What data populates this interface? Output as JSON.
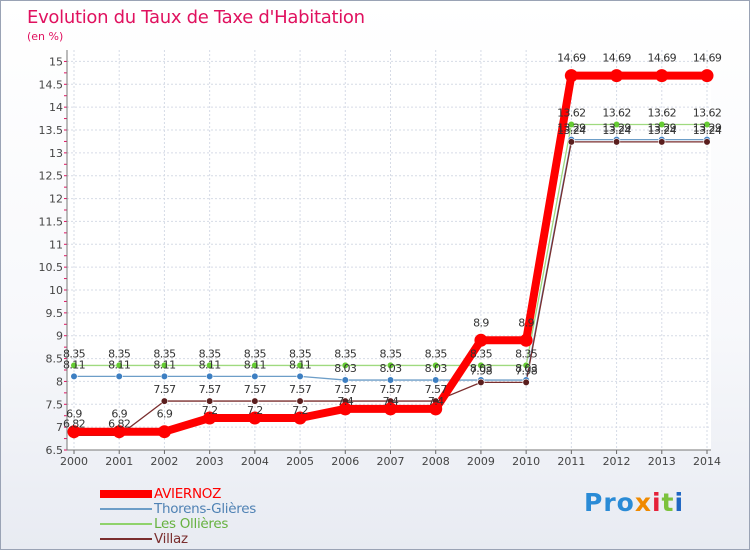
{
  "chart_data": {
    "type": "line",
    "title": "Evolution du Taux de Taxe d'Habitation",
    "ylabel": "(en %)",
    "xlabel": "",
    "categories": [
      "2000",
      "2001",
      "2002",
      "2003",
      "2004",
      "2005",
      "2006",
      "2007",
      "2008",
      "2009",
      "2010",
      "2011",
      "2012",
      "2013",
      "2014"
    ],
    "yticks": [
      "6.5",
      "7",
      "7.5",
      "8",
      "8.5",
      "9",
      "9.5",
      "10",
      "10.5",
      "11",
      "11.5",
      "12",
      "12.5",
      "13",
      "13.5",
      "14",
      "14.5",
      "15"
    ],
    "ylim": [
      6.5,
      15
    ],
    "grid": true,
    "legend_position": "bottom-left",
    "series": [
      {
        "name": "AVIERNOZ",
        "color": "#ff0000",
        "values": [
          6.9,
          6.9,
          6.9,
          7.2,
          7.2,
          7.2,
          7.4,
          7.4,
          7.4,
          8.9,
          8.9,
          14.69,
          14.69,
          14.69,
          14.69
        ],
        "labels": [
          "6.9",
          "6.9",
          "6.9",
          "",
          "",
          "",
          "",
          "",
          "",
          "8.9",
          "8.9",
          "14.69",
          "14.69",
          "14.69",
          "14.69"
        ]
      },
      {
        "name": "Thorens-Glières",
        "color": "#6d9ec8",
        "values": [
          8.11,
          8.11,
          8.11,
          8.11,
          8.11,
          8.11,
          8.03,
          8.03,
          8.03,
          8.03,
          8.03,
          13.29,
          13.29,
          13.29,
          13.29
        ],
        "labels": [
          "8.11",
          "8.11",
          "8.11",
          "8.11",
          "8.11",
          "8.11",
          "8.03",
          "8.03",
          "8.03",
          "8.03",
          "8.03",
          "13.29",
          "13.29",
          "13.29",
          "13.29"
        ]
      },
      {
        "name": "Les Ollières",
        "color": "#8fd26b",
        "values": [
          8.35,
          8.35,
          8.35,
          8.35,
          8.35,
          8.35,
          8.35,
          8.35,
          8.35,
          8.35,
          8.35,
          13.62,
          13.62,
          13.62,
          13.62
        ],
        "labels": [
          "8.35",
          "8.35",
          "8.35",
          "8.35",
          "8.35",
          "8.35",
          "8.35",
          "8.35",
          "8.35",
          "8.35",
          "8.35",
          "13.62",
          "13.62",
          "13.62",
          "13.62"
        ]
      },
      {
        "name": "Villaz",
        "color": "#7a2e2e",
        "values": [
          6.82,
          6.82,
          7.57,
          7.57,
          7.57,
          7.57,
          7.57,
          7.57,
          7.57,
          7.98,
          7.98,
          13.24,
          13.24,
          13.24,
          13.24
        ],
        "labels": [
          "6.82",
          "6.82",
          "7.57",
          "7.57",
          "7.57",
          "7.57",
          "7.57",
          "7.57",
          "7.57",
          "7.98",
          "7.98",
          "13.24",
          "13.24",
          "13.24",
          "13.24"
        ]
      }
    ],
    "extra_labels": [
      {
        "series": 0,
        "index": 3,
        "text": "7.2"
      },
      {
        "series": 0,
        "index": 4,
        "text": "7.2"
      },
      {
        "series": 0,
        "index": 5,
        "text": "7.2"
      },
      {
        "series": 0,
        "index": 6,
        "text": "7.4"
      },
      {
        "series": 0,
        "index": 7,
        "text": "7.4"
      },
      {
        "series": 0,
        "index": 8,
        "text": "7.4"
      }
    ]
  },
  "logo": {
    "p1": "Pro",
    "p2": "x",
    "p3": "i",
    "p4": "t",
    "p5": "i"
  }
}
